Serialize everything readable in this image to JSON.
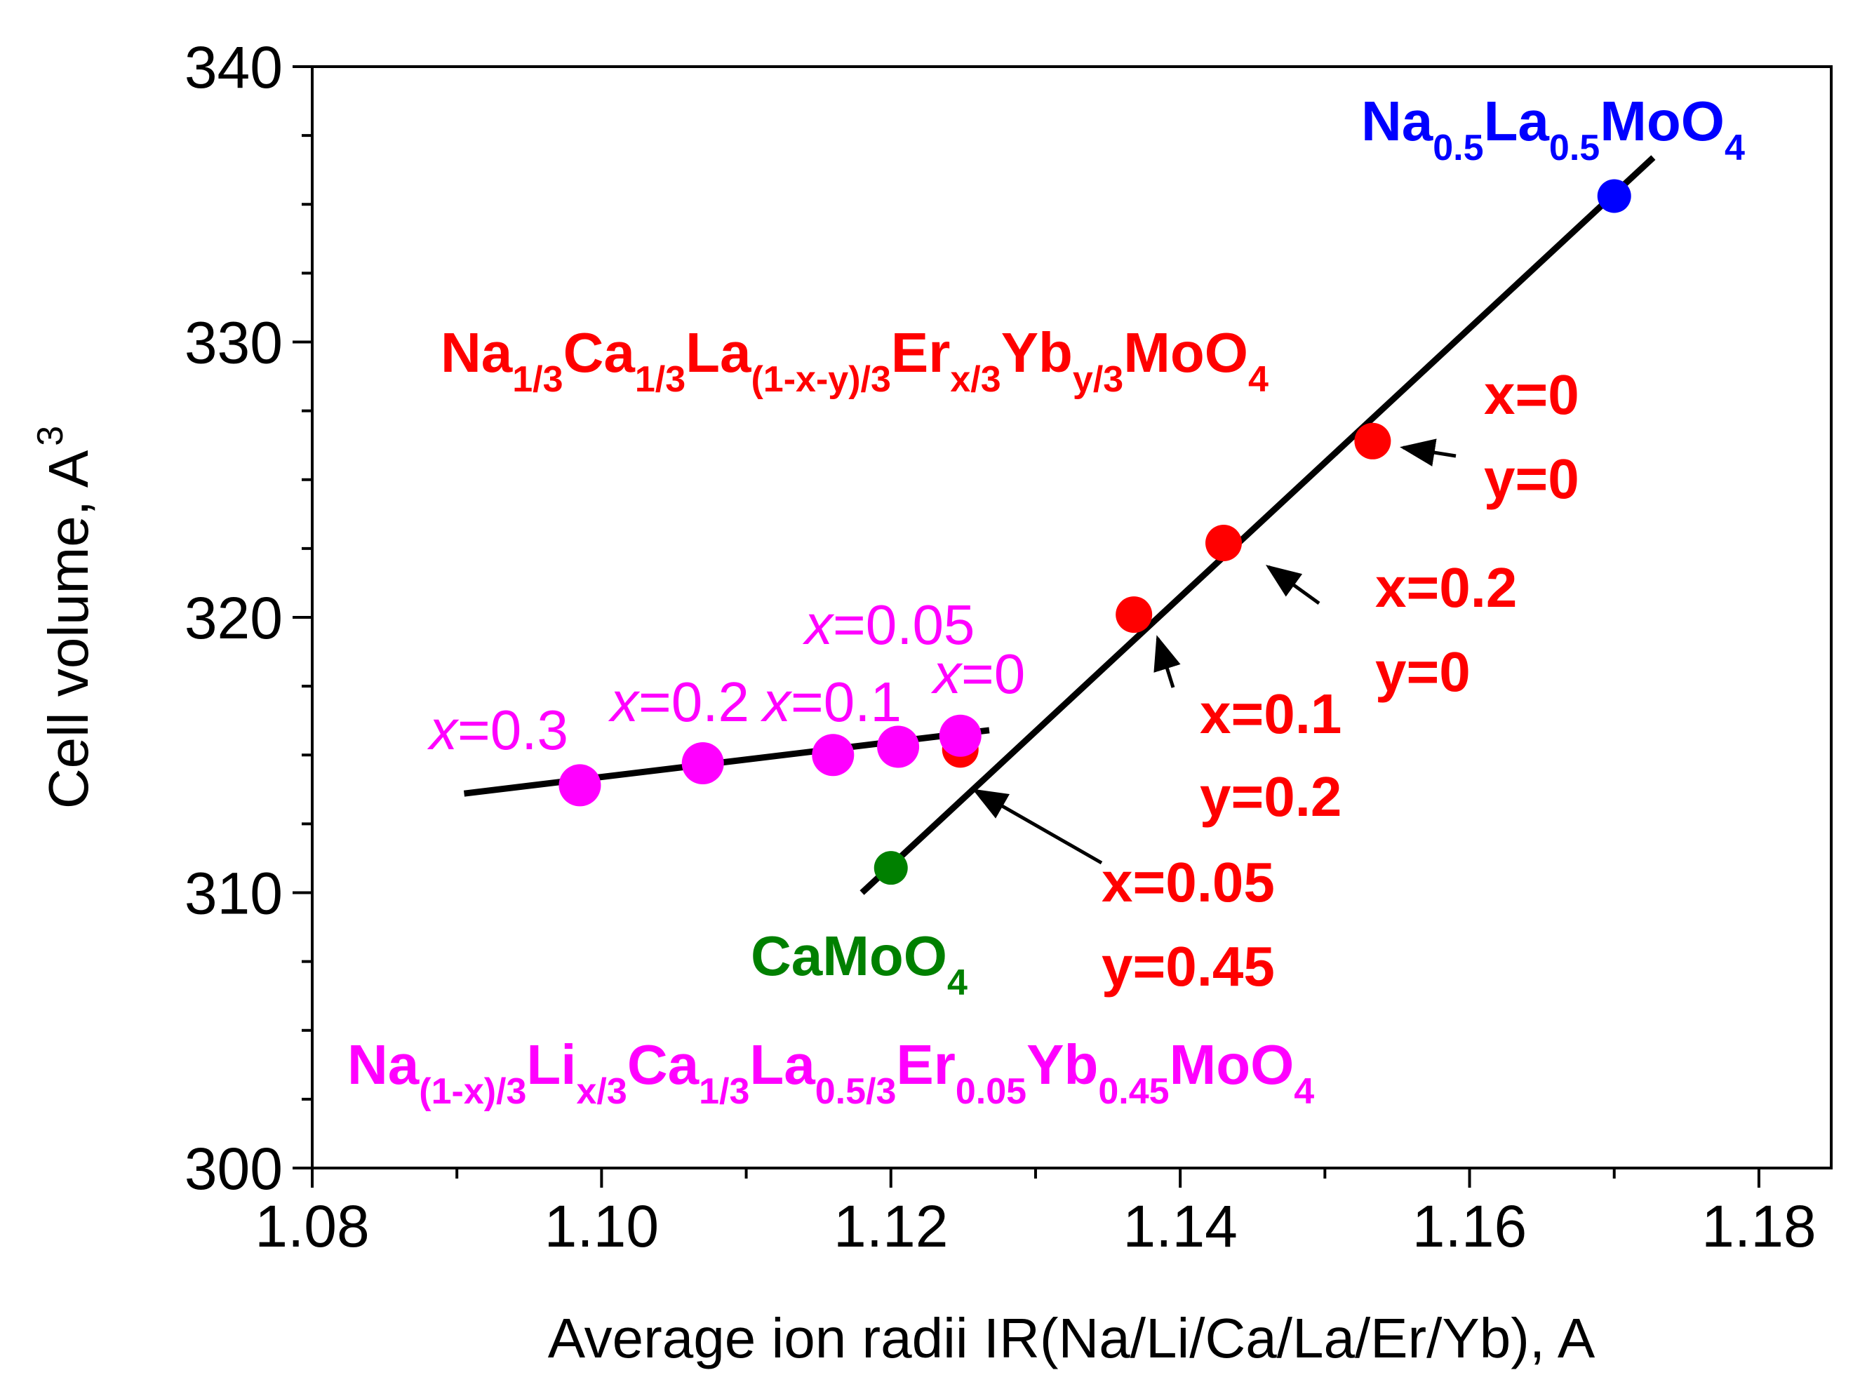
{
  "chart_data": {
    "type": "scatter",
    "title": "",
    "xlabel": "Average ion radii IR(Na/Li/Ca/La/Er/Yb), A",
    "ylabel": "Cell volume, A",
    "ylabel_sup": "3",
    "xlim": [
      1.08,
      1.185
    ],
    "ylim": [
      300,
      340
    ],
    "xticks": [
      "1.08",
      "1.10",
      "1.12",
      "1.14",
      "1.16",
      "1.18"
    ],
    "yticks": [
      "300",
      "310",
      "320",
      "330",
      "340"
    ],
    "colors": {
      "magenta": "#ff00ff",
      "red": "#ff0000",
      "blue": "#0000ff",
      "green": "#008000",
      "black": "#000000"
    },
    "series": [
      {
        "name": "Na(1-x)/3Lix/3Ca1/3La0.5/3Er0.05Yb0.45MoO4",
        "color": "#ff00ff",
        "points": [
          {
            "x": 1.0985,
            "y": 313.9,
            "label_x": "x",
            "label_v": "=0.3"
          },
          {
            "x": 1.107,
            "y": 314.7,
            "label_x": "x",
            "label_v": "=0.2"
          },
          {
            "x": 1.116,
            "y": 315.0,
            "label_x": "x",
            "label_v": "=0.1"
          },
          {
            "x": 1.1205,
            "y": 315.3,
            "label_x": "x",
            "label_v": "=0.05"
          },
          {
            "x": 1.1248,
            "y": 315.7,
            "label_x": "x",
            "label_v": "=0"
          }
        ]
      },
      {
        "name": "Na1/3Ca1/3La(1-x-y)/3Erx/3Yby/3MoO4",
        "color": "#ff0000",
        "points": [
          {
            "x": 1.1248,
            "y": 315.2
          },
          {
            "x": 1.1368,
            "y": 320.1
          },
          {
            "x": 1.143,
            "y": 322.7
          },
          {
            "x": 1.1533,
            "y": 326.4
          }
        ]
      },
      {
        "name": "Na0.5La0.5MoO4",
        "color": "#0000ff",
        "points": [
          {
            "x": 1.17,
            "y": 335.3
          }
        ]
      },
      {
        "name": "CaMoO4",
        "color": "#008000",
        "points": [
          {
            "x": 1.12,
            "y": 310.9
          }
        ]
      }
    ],
    "fit_lines": [
      {
        "name": "fit-low",
        "x1": 1.0905,
        "y1": 313.6,
        "x2": 1.1268,
        "y2": 315.9
      },
      {
        "name": "fit-high",
        "x1": 1.118,
        "y1": 310.0,
        "x2": 1.1727,
        "y2": 336.7
      }
    ],
    "labels": {
      "blue_compound": {
        "parts": [
          [
            "Na",
            ""
          ],
          [
            "0.5",
            "sub"
          ],
          [
            "La",
            ""
          ],
          [
            "0.5",
            "sub"
          ],
          [
            "MoO",
            ""
          ],
          [
            "4",
            "sub"
          ]
        ]
      },
      "red_compound": {
        "parts": [
          [
            "Na",
            ""
          ],
          [
            "1/3",
            "sub"
          ],
          [
            "Ca",
            ""
          ],
          [
            "1/3",
            "sub"
          ],
          [
            "La",
            ""
          ],
          [
            "(1-x-y)/3",
            "sub"
          ],
          [
            "Er",
            ""
          ],
          [
            "x/3",
            "sub"
          ],
          [
            "Yb",
            ""
          ],
          [
            "y/3",
            "sub"
          ],
          [
            "MoO",
            ""
          ],
          [
            "4",
            "sub"
          ]
        ]
      },
      "green_compound": {
        "parts": [
          [
            "CaMoO",
            ""
          ],
          [
            "4",
            "sub"
          ]
        ]
      },
      "magenta_compound": {
        "parts": [
          [
            "Na",
            ""
          ],
          [
            "(1-x)/3",
            "sub"
          ],
          [
            "Li",
            ""
          ],
          [
            "x/3",
            "sub"
          ],
          [
            "Ca",
            ""
          ],
          [
            "1/3",
            "sub"
          ],
          [
            "La",
            ""
          ],
          [
            "0.5/3",
            "sub"
          ],
          [
            "Er",
            ""
          ],
          [
            "0.05",
            "sub"
          ],
          [
            "Yb",
            ""
          ],
          [
            "0.45",
            "sub"
          ],
          [
            "MoO",
            ""
          ],
          [
            "4",
            "sub"
          ]
        ]
      }
    },
    "composition_annotations": [
      {
        "key": "c1",
        "line1": "x=0",
        "line2": "y=0"
      },
      {
        "key": "c2",
        "line1": "x=0.2",
        "line2": "y=0"
      },
      {
        "key": "c3",
        "line1": "x=0.1",
        "line2": "y=0.2"
      },
      {
        "key": "c4",
        "line1": "x=0.05",
        "line2": "y=0.45"
      }
    ]
  }
}
